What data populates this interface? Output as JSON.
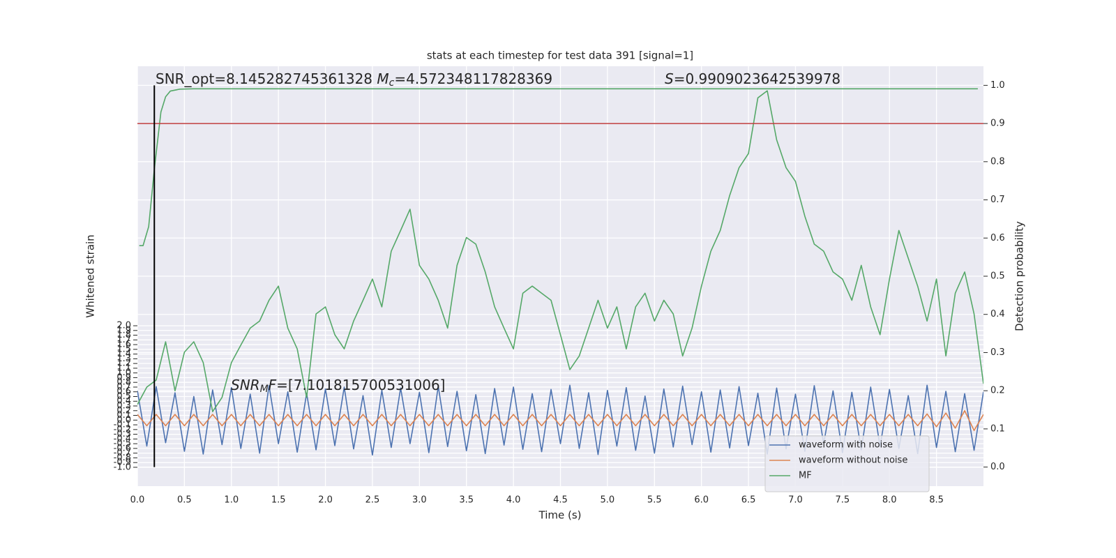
{
  "chart_data": {
    "type": "line",
    "title": "stats at each timestep for test data 391 [signal=1]",
    "xlabel": "Time (s)",
    "ylabel": "Whitened strain",
    "y2label": "Detection probability",
    "annotation_opt": {
      "label": "SNR_opt=8.145282745361328",
      "mc_symbol": "M",
      "mc_sub": "c",
      "mc_value": "=4.572348117828369"
    },
    "annotation_s": {
      "symbol": "S",
      "value": "=0.9909023642539978"
    },
    "annotation_mf": {
      "symbol": "SNR",
      "sub": "M",
      "symbol2": "F",
      "value": "=[7.101815700531006]"
    },
    "xlim": [
      0,
      9
    ],
    "xticks": [
      {
        "value": 0,
        "label": "0.0"
      },
      0.5,
      {
        "value": 1,
        "label": "1.0"
      },
      1.5,
      {
        "value": 2,
        "label": "2.0"
      },
      2.5,
      {
        "value": 3,
        "label": "3.0"
      },
      3.5,
      {
        "value": 4,
        "label": "4.0"
      },
      4.5,
      {
        "value": 5,
        "label": "5.0"
      },
      5.5,
      {
        "value": 6,
        "label": "6.0"
      },
      6.5,
      {
        "value": 7,
        "label": "7.0"
      },
      7.5,
      {
        "value": 8,
        "label": "8.0"
      },
      8.5
    ],
    "ylim": [
      -1.4,
      7.5
    ],
    "yticks": [
      {
        "value": -1,
        "label": "-1.0"
      },
      -0.9,
      -0.8,
      -0.7,
      -0.6,
      -0.5,
      -0.4,
      -0.3,
      -0.2,
      -0.1,
      {
        "value": 0,
        "label": "0.0"
      },
      0.1,
      0.2,
      0.3,
      0.4,
      0.5,
      0.6,
      0.7,
      0.8,
      0.9,
      {
        "value": 1,
        "label": "1.0"
      },
      1.1,
      1.2,
      1.3,
      1.4,
      1.5,
      1.6,
      1.7,
      1.8,
      1.9,
      {
        "value": 2,
        "label": "2.0"
      }
    ],
    "y2lim": [
      -0.05,
      1.05
    ],
    "y2ticks": [
      {
        "value": 0,
        "label": "0.0"
      },
      0.1,
      0.2,
      0.3,
      0.4,
      0.5,
      0.6,
      0.7,
      0.8,
      0.9,
      {
        "value": 1,
        "label": "1.0"
      }
    ],
    "grid": true,
    "legend": "lower right",
    "threshold": 0.9,
    "threshold_color": "#c03d3e",
    "vline": 0.18,
    "vline_color": "#000000",
    "x": [
      0,
      0.1,
      0.2,
      0.3,
      0.4,
      0.5,
      0.6,
      0.7,
      0.8,
      0.9,
      1,
      1.1,
      1.2,
      1.3,
      1.4,
      1.5,
      1.6,
      1.7,
      1.8,
      1.9,
      2,
      2.1,
      2.2,
      2.3,
      2.4,
      2.5,
      2.6,
      2.7,
      2.8,
      2.9,
      3,
      3.1,
      3.2,
      3.3,
      3.4,
      3.5,
      3.6,
      3.7,
      3.8,
      3.9,
      4,
      4.1,
      4.2,
      4.3,
      4.4,
      4.5,
      4.6,
      4.7,
      4.8,
      4.9,
      5,
      5.1,
      5.2,
      5.3,
      5.4,
      5.5,
      5.6,
      5.7,
      5.8,
      5.9,
      6,
      6.1,
      6.2,
      6.3,
      6.4,
      6.5,
      6.6,
      6.7,
      6.8,
      6.9,
      7,
      7.1,
      7.2,
      7.3,
      7.4,
      7.5,
      7.6,
      7.7,
      7.8,
      7.9,
      8,
      8.1,
      8.2,
      8.3,
      8.4,
      8.5,
      8.6,
      8.7,
      8.8,
      8.9,
      9
    ],
    "series": [
      {
        "name": "waveform with noise",
        "color": "#4c72b0",
        "values": [
          0.62,
          -0.55,
          0.71,
          -0.48,
          0.58,
          -0.66,
          0.5,
          -0.72,
          0.64,
          -0.52,
          0.69,
          -0.6,
          0.55,
          -0.7,
          0.73,
          -0.5,
          0.6,
          -0.68,
          0.57,
          -0.63,
          0.66,
          -0.54,
          0.7,
          -0.61,
          0.52,
          -0.74,
          0.63,
          -0.58,
          0.68,
          -0.5,
          0.59,
          -0.69,
          0.72,
          -0.56,
          0.61,
          -0.65,
          0.54,
          -0.71,
          0.67,
          -0.53,
          0.7,
          -0.62,
          0.56,
          -0.67,
          0.65,
          -0.5,
          0.74,
          -0.6,
          0.58,
          -0.73,
          0.63,
          -0.55,
          0.69,
          -0.64,
          0.51,
          -0.7,
          0.66,
          -0.57,
          0.72,
          -0.52,
          0.6,
          -0.68,
          0.64,
          -0.59,
          0.71,
          -0.54,
          0.57,
          -0.72,
          0.68,
          -0.61,
          0.55,
          -0.66,
          0.73,
          -0.5,
          0.62,
          -0.69,
          0.59,
          -0.63,
          0.7,
          -0.56,
          0.65,
          -0.6,
          0.52,
          -0.71,
          0.74,
          -0.58,
          0.61,
          -0.67,
          0.56,
          -0.64,
          0.6
        ]
      },
      {
        "name": "waveform without noise",
        "color": "#dd8452",
        "values": [
          0.12,
          -0.12,
          0.12,
          -0.12,
          0.12,
          -0.12,
          0.12,
          -0.12,
          0.12,
          -0.12,
          0.12,
          -0.12,
          0.12,
          -0.12,
          0.12,
          -0.12,
          0.12,
          -0.12,
          0.12,
          -0.12,
          0.12,
          -0.12,
          0.12,
          -0.12,
          0.12,
          -0.12,
          0.12,
          -0.12,
          0.12,
          -0.12,
          0.12,
          -0.12,
          0.12,
          -0.12,
          0.12,
          -0.12,
          0.12,
          -0.12,
          0.12,
          -0.12,
          0.12,
          -0.12,
          0.12,
          -0.12,
          0.12,
          -0.12,
          0.12,
          -0.12,
          0.12,
          -0.12,
          0.12,
          -0.12,
          0.12,
          -0.12,
          0.12,
          -0.12,
          0.12,
          -0.12,
          0.12,
          -0.12,
          0.12,
          -0.12,
          0.12,
          -0.12,
          0.12,
          -0.12,
          0.12,
          -0.12,
          0.12,
          -0.12,
          0.12,
          -0.12,
          0.12,
          -0.12,
          0.12,
          -0.12,
          0.12,
          -0.12,
          0.12,
          -0.12,
          0.12,
          -0.12,
          0.12,
          -0.12,
          0.13,
          -0.14,
          0.15,
          -0.17,
          0.2,
          -0.22,
          0.12
        ]
      },
      {
        "name": "MF",
        "color": "#55a868",
        "values": [
          0.33,
          0.7,
          0.85,
          1.66,
          0.62,
          1.44,
          1.66,
          1.22,
          0.18,
          0.48,
          1.22,
          1.59,
          1.95,
          2.1,
          2.54,
          2.84,
          1.95,
          1.51,
          0.48,
          2.25,
          2.4,
          1.81,
          1.51,
          2.1,
          2.54,
          2.99,
          2.4,
          3.58,
          4.02,
          4.47,
          3.28,
          2.99,
          2.54,
          1.95,
          3.28,
          3.87,
          3.73,
          3.14,
          2.4,
          1.95,
          1.51,
          2.69,
          2.84,
          2.69,
          2.54,
          1.81,
          1.07,
          1.36,
          1.95,
          2.54,
          1.95,
          2.4,
          1.51,
          2.4,
          2.69,
          2.1,
          2.54,
          2.25,
          1.36,
          1.95,
          2.84,
          3.58,
          4.02,
          4.76,
          5.35,
          5.65,
          6.83,
          6.98,
          5.94,
          5.35,
          5.06,
          4.32,
          3.73,
          3.58,
          3.14,
          2.99,
          2.54,
          3.28,
          2.4,
          1.81,
          2.99,
          4.02,
          3.43,
          2.84,
          2.1,
          2.99,
          1.36,
          2.69,
          3.14,
          2.25,
          0.77
        ]
      },
      {
        "color": "#55a868",
        "axis": "y2",
        "x": [
          0.02,
          0.06,
          0.12,
          0.18,
          0.25,
          0.3,
          0.35,
          0.45,
          0.6,
          1,
          8.94
        ],
        "values": [
          0.58,
          0.58,
          0.63,
          0.78,
          0.93,
          0.97,
          0.985,
          0.99,
          0.991,
          0.991,
          0.991
        ]
      }
    ]
  }
}
